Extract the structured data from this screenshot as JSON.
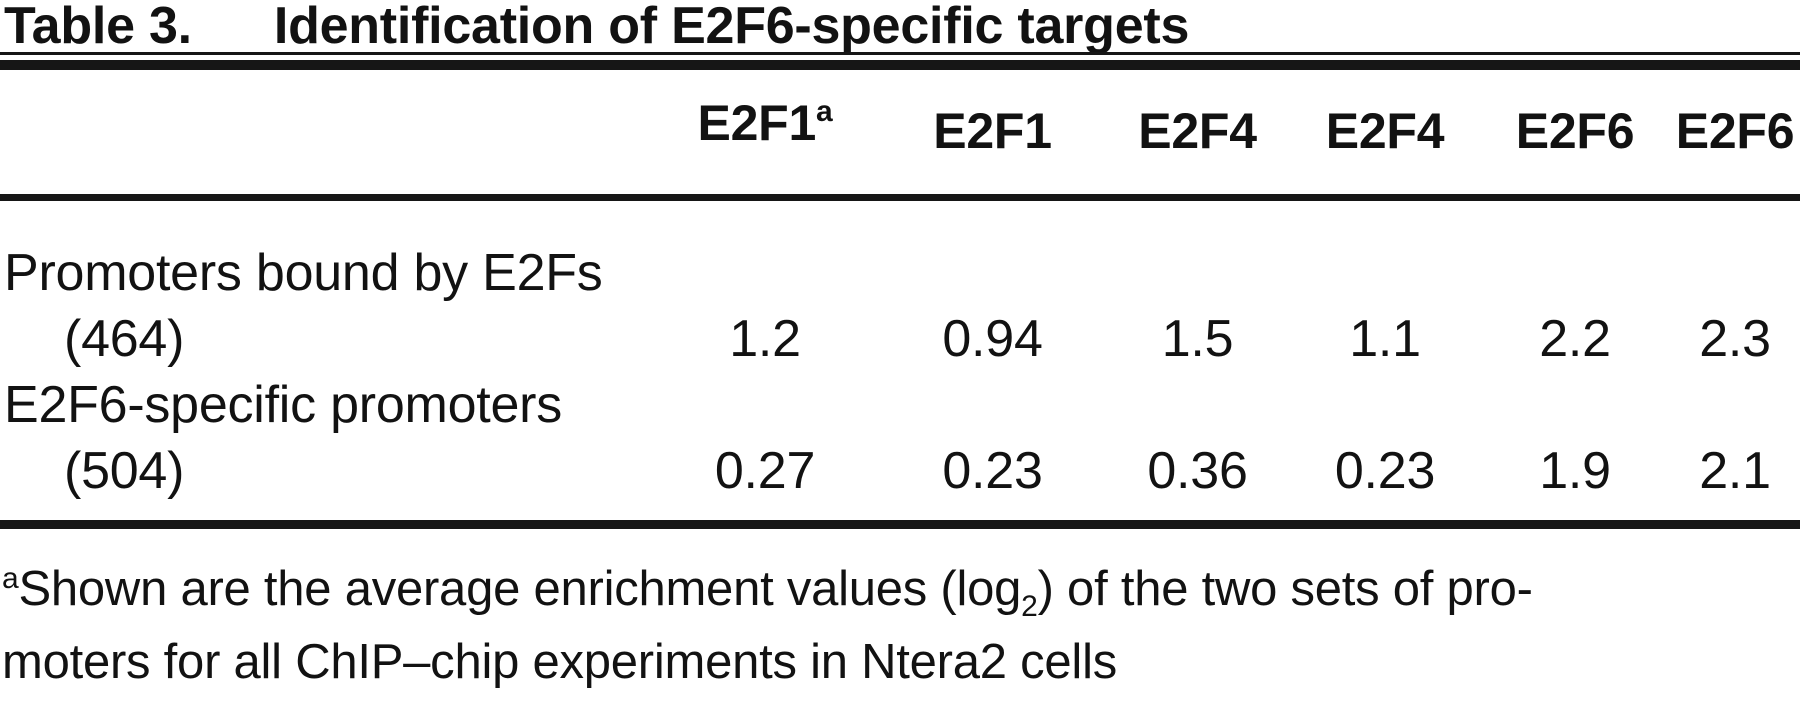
{
  "title": {
    "label": "Table 3.",
    "caption": "Identification of E2F6-specific targets"
  },
  "table": {
    "columns": [
      {
        "label": "E2F1",
        "sup": "a"
      },
      {
        "label": "E2F1"
      },
      {
        "label": "E2F4"
      },
      {
        "label": "E2F4"
      },
      {
        "label": "E2F6"
      },
      {
        "label": "E2F6"
      }
    ],
    "rows": [
      {
        "label": "Promoters bound by E2Fs",
        "count": "(464)",
        "values": [
          "1.2",
          "0.94",
          "1.5",
          "1.1",
          "2.2",
          "2.3"
        ]
      },
      {
        "label": "E2F6-specific promoters",
        "count": "(504)",
        "values": [
          "0.27",
          "0.23",
          "0.36",
          "0.23",
          "1.9",
          "2.1"
        ]
      }
    ]
  },
  "footnote": {
    "marker": "a",
    "text_before_sub": "Shown are the average enrichment values (log",
    "sub": "2",
    "text_after_sub": ") of the two sets of pro-",
    "line2": "moters for all ChIP–chip experiments in Ntera2 cells"
  }
}
